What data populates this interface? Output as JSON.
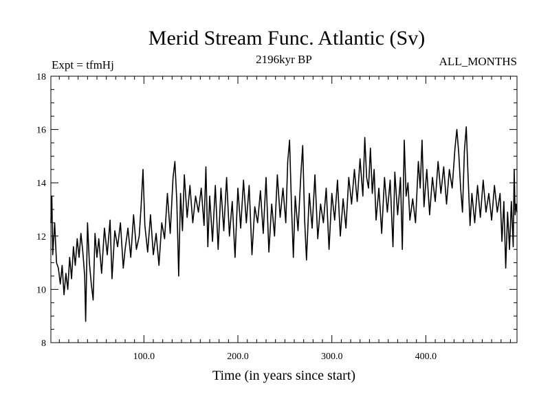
{
  "chart_data": {
    "type": "line",
    "title": "Merid Stream Func. Atlantic (Sv)",
    "subtitle_left": "Expt = tfmHj",
    "subtitle_center": "2196kyr BP",
    "subtitle_right": "ALL_MONTHS",
    "xlabel": "Time (in years since start)",
    "ylabel": "",
    "xlim": [
      1,
      497
    ],
    "ylim": [
      8,
      18
    ],
    "xticks_major": [
      100,
      200,
      300,
      400
    ],
    "xtick_labels": [
      "100.0",
      "200.0",
      "300.0",
      "400.0"
    ],
    "yticks_major": [
      8,
      10,
      12,
      14,
      16,
      18
    ],
    "ytick_labels": [
      "8",
      "10",
      "12",
      "14",
      "16",
      "18"
    ],
    "grid": false,
    "series": [
      {
        "name": "Merid Stream Func. Atlantic",
        "color": "#000000",
        "anchors": [
          [
            1,
            12.5
          ],
          [
            2,
            13.5
          ],
          [
            3,
            11.3
          ],
          [
            5,
            12.5
          ],
          [
            7,
            11.0
          ],
          [
            9,
            10.8
          ],
          [
            11,
            10.2
          ],
          [
            13,
            10.9
          ],
          [
            15,
            9.8
          ],
          [
            17,
            10.6
          ],
          [
            19,
            10.0
          ],
          [
            21,
            11.2
          ],
          [
            23,
            10.4
          ],
          [
            25,
            11.6
          ],
          [
            27,
            10.9
          ],
          [
            29,
            11.9
          ],
          [
            31,
            11.2
          ],
          [
            33,
            12.1
          ],
          [
            35,
            11.4
          ],
          [
            37,
            10.5
          ],
          [
            38,
            8.8
          ],
          [
            40,
            12.5
          ],
          [
            42,
            11.0
          ],
          [
            44,
            10.2
          ],
          [
            46,
            9.6
          ],
          [
            48,
            12.1
          ],
          [
            50,
            11.2
          ],
          [
            52,
            11.9
          ],
          [
            55,
            10.6
          ],
          [
            58,
            12.3
          ],
          [
            61,
            11.3
          ],
          [
            64,
            12.6
          ],
          [
            66,
            10.4
          ],
          [
            69,
            12.2
          ],
          [
            72,
            11.6
          ],
          [
            75,
            12.5
          ],
          [
            78,
            10.8
          ],
          [
            80,
            11.5
          ],
          [
            83,
            12.3
          ],
          [
            86,
            11.2
          ],
          [
            89,
            12.8
          ],
          [
            92,
            11.5
          ],
          [
            95,
            12.0
          ],
          [
            97,
            13.1
          ],
          [
            99,
            14.5
          ],
          [
            101,
            12.4
          ],
          [
            104,
            11.4
          ],
          [
            107,
            12.8
          ],
          [
            110,
            11.3
          ],
          [
            113,
            12.1
          ],
          [
            116,
            10.9
          ],
          [
            119,
            12.5
          ],
          [
            122,
            11.9
          ],
          [
            125,
            13.6
          ],
          [
            128,
            12.1
          ],
          [
            131,
            14.2
          ],
          [
            133,
            14.8
          ],
          [
            135,
            13.3
          ],
          [
            137,
            10.5
          ],
          [
            139,
            13.6
          ],
          [
            141,
            12.2
          ],
          [
            143,
            14.3
          ],
          [
            146,
            12.7
          ],
          [
            149,
            13.9
          ],
          [
            152,
            12.5
          ],
          [
            155,
            13.5
          ],
          [
            158,
            12.9
          ],
          [
            161,
            13.8
          ],
          [
            164,
            12.4
          ],
          [
            166,
            14.6
          ],
          [
            168,
            11.6
          ],
          [
            170,
            13.5
          ],
          [
            173,
            11.8
          ],
          [
            176,
            13.9
          ],
          [
            179,
            11.5
          ],
          [
            182,
            13.8
          ],
          [
            185,
            12.2
          ],
          [
            188,
            14.2
          ],
          [
            191,
            12.0
          ],
          [
            194,
            13.3
          ],
          [
            197,
            11.2
          ],
          [
            200,
            13.8
          ],
          [
            203,
            12.3
          ],
          [
            206,
            14.1
          ],
          [
            209,
            12.5
          ],
          [
            212,
            13.9
          ],
          [
            215,
            11.3
          ],
          [
            218,
            13.1
          ],
          [
            221,
            12.5
          ],
          [
            224,
            13.7
          ],
          [
            227,
            12.1
          ],
          [
            230,
            14.2
          ],
          [
            233,
            11.4
          ],
          [
            236,
            13.2
          ],
          [
            239,
            12.0
          ],
          [
            242,
            14.3
          ],
          [
            245,
            12.7
          ],
          [
            248,
            13.8
          ],
          [
            251,
            12.5
          ],
          [
            253,
            14.8
          ],
          [
            255,
            15.6
          ],
          [
            257,
            13.2
          ],
          [
            259,
            11.2
          ],
          [
            261,
            13.5
          ],
          [
            264,
            12.2
          ],
          [
            267,
            14.3
          ],
          [
            269,
            15.4
          ],
          [
            271,
            12.6
          ],
          [
            273,
            11.1
          ],
          [
            276,
            13.6
          ],
          [
            279,
            12.3
          ],
          [
            282,
            14.3
          ],
          [
            285,
            11.9
          ],
          [
            288,
            13.2
          ],
          [
            291,
            12.5
          ],
          [
            294,
            13.8
          ],
          [
            297,
            11.5
          ],
          [
            300,
            13.6
          ],
          [
            303,
            12.6
          ],
          [
            306,
            14.1
          ],
          [
            309,
            12.0
          ],
          [
            312,
            13.4
          ],
          [
            315,
            12.3
          ],
          [
            318,
            14.2
          ],
          [
            321,
            13.2
          ],
          [
            324,
            14.5
          ],
          [
            327,
            13.3
          ],
          [
            330,
            14.9
          ],
          [
            333,
            13.5
          ],
          [
            335,
            15.7
          ],
          [
            337,
            14.2
          ],
          [
            339,
            13.8
          ],
          [
            341,
            15.3
          ],
          [
            343,
            13.6
          ],
          [
            345,
            14.5
          ],
          [
            347,
            12.6
          ],
          [
            350,
            13.8
          ],
          [
            353,
            12.1
          ],
          [
            356,
            14.2
          ],
          [
            359,
            12.9
          ],
          [
            362,
            14.1
          ],
          [
            365,
            11.6
          ],
          [
            367,
            14.4
          ],
          [
            370,
            12.8
          ],
          [
            373,
            14.2
          ],
          [
            375,
            11.5
          ],
          [
            377,
            15.6
          ],
          [
            379,
            13.5
          ],
          [
            381,
            14.0
          ],
          [
            383,
            12.6
          ],
          [
            386,
            13.4
          ],
          [
            389,
            12.5
          ],
          [
            392,
            14.8
          ],
          [
            394,
            13.8
          ],
          [
            396,
            15.6
          ],
          [
            398,
            13.1
          ],
          [
            401,
            14.5
          ],
          [
            404,
            12.8
          ],
          [
            407,
            14.2
          ],
          [
            410,
            13.3
          ],
          [
            413,
            14.8
          ],
          [
            416,
            13.6
          ],
          [
            419,
            14.6
          ],
          [
            422,
            13.2
          ],
          [
            425,
            14.5
          ],
          [
            428,
            13.8
          ],
          [
            431,
            15.3
          ],
          [
            433,
            16.0
          ],
          [
            435,
            15.1
          ],
          [
            437,
            13.8
          ],
          [
            439,
            12.9
          ],
          [
            441,
            15.2
          ],
          [
            443,
            16.1
          ],
          [
            445,
            14.2
          ],
          [
            447,
            12.4
          ],
          [
            449,
            13.6
          ],
          [
            452,
            12.5
          ],
          [
            455,
            13.9
          ],
          [
            458,
            12.7
          ],
          [
            461,
            14.1
          ],
          [
            464,
            12.9
          ],
          [
            467,
            13.6
          ],
          [
            470,
            12.6
          ],
          [
            473,
            13.9
          ],
          [
            476,
            12.9
          ],
          [
            479,
            13.6
          ],
          [
            481,
            11.8
          ],
          [
            483,
            13.3
          ],
          [
            485,
            10.8
          ],
          [
            487,
            12.9
          ],
          [
            489,
            11.5
          ],
          [
            491,
            13.3
          ],
          [
            493,
            11.6
          ],
          [
            494,
            14.5
          ],
          [
            495,
            12.8
          ],
          [
            496,
            13.2
          ],
          [
            497,
            12.9
          ]
        ]
      }
    ]
  }
}
